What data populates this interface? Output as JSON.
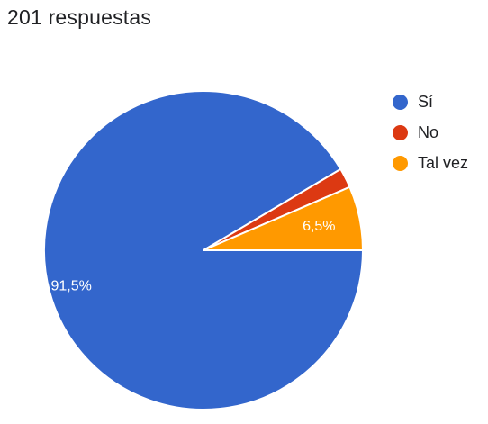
{
  "summary": {
    "responses_text": "201 respuestas"
  },
  "chart_data": {
    "type": "pie",
    "categories": [
      "Sí",
      "No",
      "Tal vez"
    ],
    "values": [
      91.5,
      2.0,
      6.5
    ],
    "slice_labels": [
      "91,5%",
      "",
      "6,5%"
    ],
    "colors": [
      "#3366cc",
      "#dc3912",
      "#ff9900"
    ],
    "label_color": "#ffffff",
    "legend_position": "right"
  }
}
